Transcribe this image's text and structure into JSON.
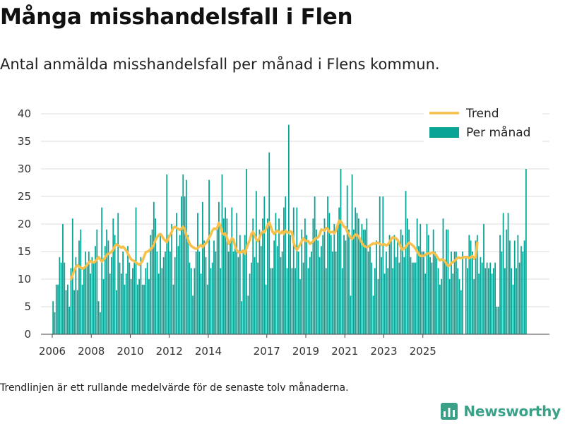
{
  "title": "Många misshandelsfall i Flen",
  "subtitle": "Antal anmälda misshandelsfall per månad i Flens kommun.",
  "footnote": "Trendlinjen är ett rullande medelvärde för de senaste tolv månaderna.",
  "brand": "Newsworthy",
  "colors": {
    "bars": "#0aa497",
    "trend": "#f7c04a",
    "grid": "#dcdcdc",
    "brand": "#3aa088"
  },
  "chart_data": {
    "type": "bar",
    "start": "2006-01",
    "ylim": [
      0,
      40
    ],
    "yticks": [
      0,
      5,
      10,
      15,
      20,
      25,
      30,
      35,
      40
    ],
    "xticks": [
      2006,
      2008,
      2010,
      2012,
      2014,
      2017,
      2019,
      2021,
      2023,
      2025
    ],
    "grid": true,
    "legend_position": "top-right",
    "series": [
      {
        "name": "Per månad",
        "type": "bar",
        "values": [
          6,
          4,
          9,
          9,
          14,
          13,
          20,
          13,
          8,
          9,
          5,
          12,
          21,
          8,
          14,
          8,
          17,
          19,
          9,
          12,
          15,
          13,
          15,
          11,
          14,
          13,
          16,
          19,
          6,
          4,
          23,
          10,
          16,
          19,
          17,
          11,
          14,
          21,
          18,
          8,
          22,
          13,
          11,
          15,
          9,
          11,
          16,
          13,
          10,
          12,
          13,
          23,
          9,
          10,
          14,
          9,
          9,
          12,
          13,
          10,
          18,
          19,
          24,
          21,
          15,
          11,
          18,
          12,
          14,
          15,
          29,
          18,
          15,
          20,
          9,
          14,
          22,
          16,
          18,
          25,
          29,
          25,
          28,
          18,
          13,
          12,
          7,
          12,
          15,
          22,
          15,
          11,
          24,
          17,
          14,
          9,
          28,
          12,
          13,
          17,
          15,
          19,
          24,
          12,
          29,
          21,
          23,
          21,
          15,
          17,
          23,
          15,
          16,
          22,
          14,
          18,
          6,
          15,
          18,
          30,
          7,
          11,
          13,
          21,
          14,
          26,
          13,
          19,
          16,
          21,
          25,
          9,
          21,
          33,
          12,
          12,
          17,
          22,
          16,
          21,
          14,
          15,
          23,
          25,
          12,
          38,
          18,
          12,
          23,
          12,
          23,
          15,
          10,
          19,
          13,
          21,
          18,
          12,
          14,
          15,
          21,
          25,
          19,
          17,
          14,
          16,
          18,
          21,
          12,
          25,
          22,
          18,
          15,
          20,
          15,
          20,
          23,
          30,
          12,
          18,
          17,
          27,
          19,
          7,
          29,
          19,
          23,
          22,
          21,
          17,
          20,
          19,
          19,
          21,
          15,
          16,
          13,
          7,
          12,
          17,
          10,
          25,
          14,
          25,
          11,
          15,
          12,
          18,
          17,
          12,
          18,
          14,
          17,
          13,
          19,
          18,
          14,
          26,
          21,
          19,
          14,
          13,
          13,
          13,
          21,
          16,
          20,
          15,
          15,
          11,
          20,
          18,
          14,
          13,
          19,
          15,
          14,
          12,
          9,
          10,
          21,
          13,
          19,
          19,
          10,
          15,
          11,
          15,
          15,
          12,
          10,
          8,
          15,
          0,
          14,
          12,
          18,
          17,
          15,
          10,
          17,
          18,
          11,
          14,
          13,
          20,
          12,
          13,
          12,
          13,
          11,
          12,
          13,
          5,
          5,
          18,
          15,
          22,
          12,
          19,
          22,
          17,
          12,
          9,
          17,
          12,
          18,
          13,
          16,
          15,
          17,
          30
        ]
      },
      {
        "name": "Trend",
        "type": "line",
        "start": "2006-12",
        "values": [
          10,
          10.8,
          11.5,
          12.2,
          12.5,
          12.3,
          12.1,
          11.9,
          12,
          12.3,
          12.6,
          13,
          13.3,
          13.1,
          13,
          13.2,
          13.6,
          14,
          13.6,
          13.2,
          13.5,
          13.9,
          14.4,
          14.6,
          14.7,
          15,
          15.3,
          16,
          16.3,
          16.1,
          15.9,
          15.7,
          15.9,
          15.6,
          15.2,
          14.6,
          14.1,
          13.6,
          13.4,
          13.3,
          13,
          12.8,
          12.6,
          12.9,
          13.3,
          14.1,
          14.9,
          15,
          15.1,
          15.5,
          15.7,
          16.3,
          17.1,
          17.6,
          18,
          18.2,
          17.8,
          17.3,
          17,
          16.7,
          17.5,
          18,
          18.6,
          19.3,
          19.5,
          19.3,
          19.1,
          18.9,
          19.2,
          19.5,
          19,
          17.9,
          17.2,
          16.4,
          16,
          15.8,
          15.6,
          15.5,
          15.6,
          16,
          16.2,
          15.8,
          16.2,
          16.5,
          16.9,
          17.5,
          18.1,
          18.8,
          19.2,
          19.1,
          19.3,
          20.2,
          19.6,
          18.4,
          18.1,
          18.3,
          17.5,
          16.4,
          16.8,
          17.4,
          17.2,
          16,
          15.2,
          14.9,
          14.8,
          15,
          15.2,
          14.6,
          15.6,
          16.4,
          17.1,
          18.2,
          18.6,
          17.9,
          17.2,
          16.9,
          17.5,
          18.3,
          18.6,
          18.5,
          19.1,
          19.8,
          20.3,
          19.5,
          18.6,
          18.2,
          18.6,
          18.8,
          18.5,
          18.3,
          18.7,
          18.2,
          18.8,
          18.5,
          18.4,
          18.7,
          18.5,
          16.6,
          15.8,
          15.3,
          15.8,
          16.3,
          16.9,
          17.4,
          17,
          16.9,
          16.9,
          16.4,
          16.6,
          16.9,
          17.3,
          17.4,
          17.6,
          18.1,
          19,
          18.9,
          18.8,
          19.3,
          19.1,
          18.5,
          18.5,
          18.6,
          18.3,
          18.8,
          19.7,
          20.6,
          20.5,
          20,
          19.5,
          19.4,
          18.6,
          18.1,
          17.5,
          17.3,
          17.7,
          18.1,
          18,
          17.7,
          17.2,
          16.6,
          16.1,
          15.9,
          15.8,
          15.9,
          16.1,
          16.3,
          16.5,
          16.4,
          16.6,
          16.6,
          16.4,
          16.2,
          16.3,
          16.3,
          16.1,
          16.3,
          16.7,
          17.3,
          17.6,
          17.5,
          17.4,
          17.1,
          16.5,
          15.8,
          15.3,
          15.6,
          15.8,
          16.3,
          16.6,
          16.4,
          16.2,
          15.9,
          15.5,
          15,
          14.5,
          14.2,
          14.2,
          14.2,
          14.4,
          14.6,
          14.7,
          14.6,
          14.8,
          14.8,
          14.6,
          14.2,
          13.7,
          13.4,
          13.6,
          13.5,
          13.3,
          12.8,
          12.4,
          12.5,
          12.9,
          13.1,
          13.3,
          13.6,
          13.9,
          13.9,
          13.8,
          13.9,
          14,
          14,
          14,
          13.8,
          14,
          14.2,
          13.7,
          14.1,
          16.6
        ]
      }
    ]
  }
}
